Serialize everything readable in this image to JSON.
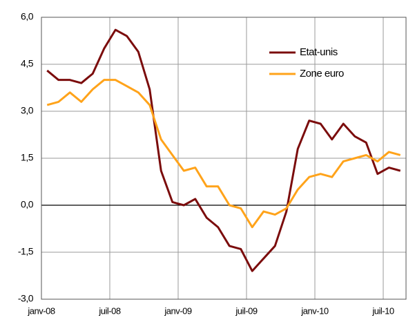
{
  "chart_data": {
    "type": "line",
    "categories": [
      "janv-08",
      null,
      null,
      null,
      null,
      null,
      "juil-08",
      null,
      null,
      null,
      null,
      null,
      "janv-09",
      null,
      null,
      null,
      null,
      null,
      "juil-09",
      null,
      null,
      null,
      null,
      null,
      "janv-10",
      null,
      null,
      null,
      null,
      null,
      "juil-10",
      null
    ],
    "series": [
      {
        "name": "Etat-unis",
        "color": "#7b0c0c",
        "values": [
          4.3,
          4.0,
          4.0,
          3.9,
          4.2,
          5.0,
          5.6,
          5.4,
          4.9,
          3.7,
          1.1,
          0.1,
          0.0,
          0.2,
          -0.4,
          -0.7,
          -1.3,
          -1.4,
          -2.1,
          -1.7,
          -1.3,
          -0.2,
          1.8,
          2.7,
          2.6,
          2.1,
          2.6,
          2.2,
          2.0,
          1.0,
          1.2,
          1.1
        ]
      },
      {
        "name": "Zone euro",
        "color": "#ffa31a",
        "values": [
          3.2,
          3.3,
          3.6,
          3.3,
          3.7,
          4.0,
          4.0,
          3.8,
          3.6,
          3.2,
          2.1,
          1.6,
          1.1,
          1.2,
          0.6,
          0.6,
          0.0,
          -0.1,
          -0.7,
          -0.2,
          -0.3,
          -0.1,
          0.5,
          0.9,
          1.0,
          0.9,
          1.4,
          1.5,
          1.6,
          1.4,
          1.7,
          1.6
        ]
      }
    ],
    "ylim": [
      -3,
      6
    ],
    "yticks": [
      {
        "value": -3,
        "label": "-3,0"
      },
      {
        "value": -1.5,
        "label": "-1,5"
      },
      {
        "value": 0,
        "label": "0,0"
      },
      {
        "value": 1.5,
        "label": "1,5"
      },
      {
        "value": 3,
        "label": "3,0"
      },
      {
        "value": 4.5,
        "label": "4,5"
      },
      {
        "value": 6,
        "label": "6,0"
      }
    ],
    "grid": true,
    "legend": "upper right"
  }
}
